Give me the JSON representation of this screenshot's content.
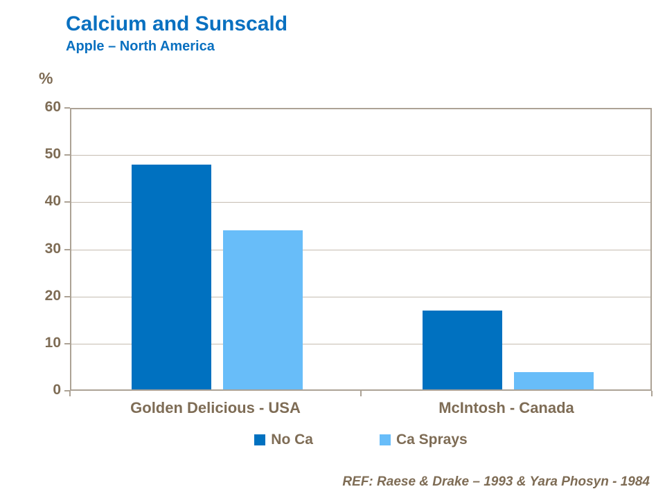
{
  "slide": {
    "title": "Calcium and Sunscald",
    "subtitle": "Apple – North America",
    "ref": "REF: Raese & Drake – 1993 & Yara Phosyn - 1984"
  },
  "colors": {
    "title_blue": "#0970C0",
    "text_brown": "#7E6C55",
    "axis_border": "#ACA295",
    "gridline": "#C5BCB0",
    "background": "#FFFFFF"
  },
  "chart_data": {
    "type": "bar",
    "title": "Calcium and Sunscald",
    "subtitle": "Apple – North America",
    "ylabel": "%",
    "xlabel": "",
    "categories": [
      "Golden Delicious - USA",
      "McIntosh - Canada"
    ],
    "series": [
      {
        "name": "No Ca",
        "values": [
          48,
          17
        ],
        "color": "#0071C0"
      },
      {
        "name": "Ca Sprays",
        "values": [
          34,
          4
        ],
        "color": "#68BDF9"
      }
    ],
    "ylim": [
      0,
      60
    ],
    "yticks": [
      0,
      10,
      20,
      30,
      40,
      50,
      60
    ],
    "grid": true,
    "legend_position": "bottom"
  }
}
